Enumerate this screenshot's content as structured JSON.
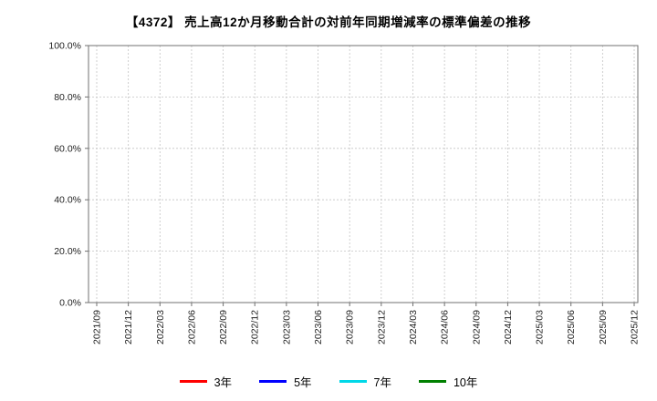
{
  "chart_data": {
    "type": "line",
    "title": "【4372】 売上高12か月移動合計の対前年同期増減率の標準偏差の推移",
    "xlabel": "",
    "ylabel": "",
    "x_ticks": [
      "2021/09",
      "2021/12",
      "2022/03",
      "2022/06",
      "2022/09",
      "2022/12",
      "2023/03",
      "2023/06",
      "2023/09",
      "2023/12",
      "2024/03",
      "2024/06",
      "2024/09",
      "2024/12",
      "2025/03",
      "2025/06",
      "2025/09",
      "2025/12"
    ],
    "y_ticks": [
      "0.0%",
      "20.0%",
      "40.0%",
      "60.0%",
      "80.0%",
      "100.0%"
    ],
    "ylim": [
      0,
      100
    ],
    "grid": true,
    "grid_style": "dashed",
    "legend_position": "bottom",
    "series": [
      {
        "name": "3年",
        "color": "#ff0000",
        "values": []
      },
      {
        "name": "5年",
        "color": "#0000ff",
        "values": []
      },
      {
        "name": "7年",
        "color": "#00d8e8",
        "values": []
      },
      {
        "name": "10年",
        "color": "#008000",
        "values": []
      }
    ]
  },
  "colors": {
    "grid": "#c4c4c4",
    "axis": "#707070",
    "text": "#222222",
    "background": "#ffffff"
  }
}
